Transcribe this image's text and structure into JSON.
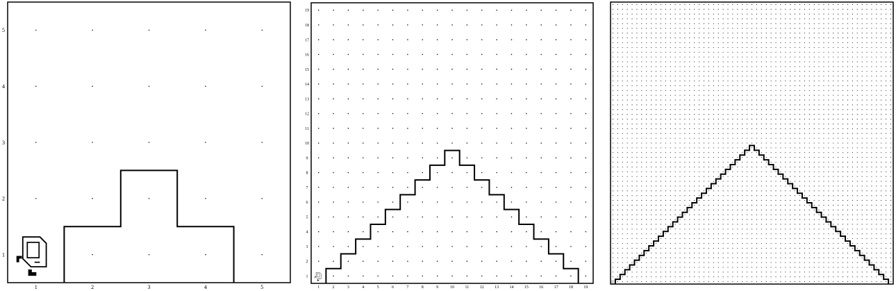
{
  "worlds": [
    {
      "id": "world-5",
      "size": 5,
      "x_labels": [
        "1",
        "2",
        "3",
        "4",
        "5"
      ],
      "y_labels": [
        "1",
        "2",
        "3",
        "4",
        "5"
      ],
      "wall_heights": [
        0,
        1,
        2,
        1,
        0
      ],
      "robot": {
        "avenue": 1,
        "street": 1,
        "facing": "north"
      },
      "colors": {
        "dot": "#000000",
        "wall": "#000000"
      }
    },
    {
      "id": "world-19",
      "size": 19,
      "x_labels": [
        "1",
        "2",
        "3",
        "4",
        "5",
        "6",
        "7",
        "8",
        "9",
        "10",
        "11",
        "12",
        "13",
        "14",
        "15",
        "16",
        "17",
        "18",
        "19"
      ],
      "y_labels": [
        "1",
        "2",
        "3",
        "4",
        "5",
        "6",
        "7",
        "8",
        "9",
        "10",
        "11",
        "12",
        "13",
        "14",
        "15",
        "16",
        "17",
        "18",
        "19"
      ],
      "wall_heights": [
        0,
        1,
        2,
        3,
        4,
        5,
        6,
        7,
        8,
        9,
        8,
        7,
        6,
        5,
        4,
        3,
        2,
        1,
        0
      ],
      "robot": {
        "avenue": 1,
        "street": 1,
        "facing": "north"
      },
      "colors": {
        "dot": "#000000",
        "wall": "#000000"
      }
    },
    {
      "id": "world-59",
      "size": 59,
      "x_labels": [],
      "y_labels": [],
      "wall_heights": [
        0,
        1,
        2,
        3,
        4,
        5,
        6,
        7,
        8,
        9,
        10,
        11,
        12,
        13,
        14,
        15,
        16,
        17,
        18,
        19,
        20,
        21,
        22,
        23,
        24,
        25,
        26,
        27,
        28,
        29,
        28,
        27,
        26,
        25,
        24,
        23,
        22,
        21,
        20,
        19,
        18,
        17,
        16,
        15,
        14,
        13,
        12,
        11,
        10,
        9,
        8,
        7,
        6,
        5,
        4,
        3,
        2,
        1,
        0
      ],
      "robot": {
        "avenue": 1,
        "street": 1,
        "facing": "north"
      },
      "colors": {
        "dot": "#000000",
        "wall": "#000000"
      }
    }
  ]
}
